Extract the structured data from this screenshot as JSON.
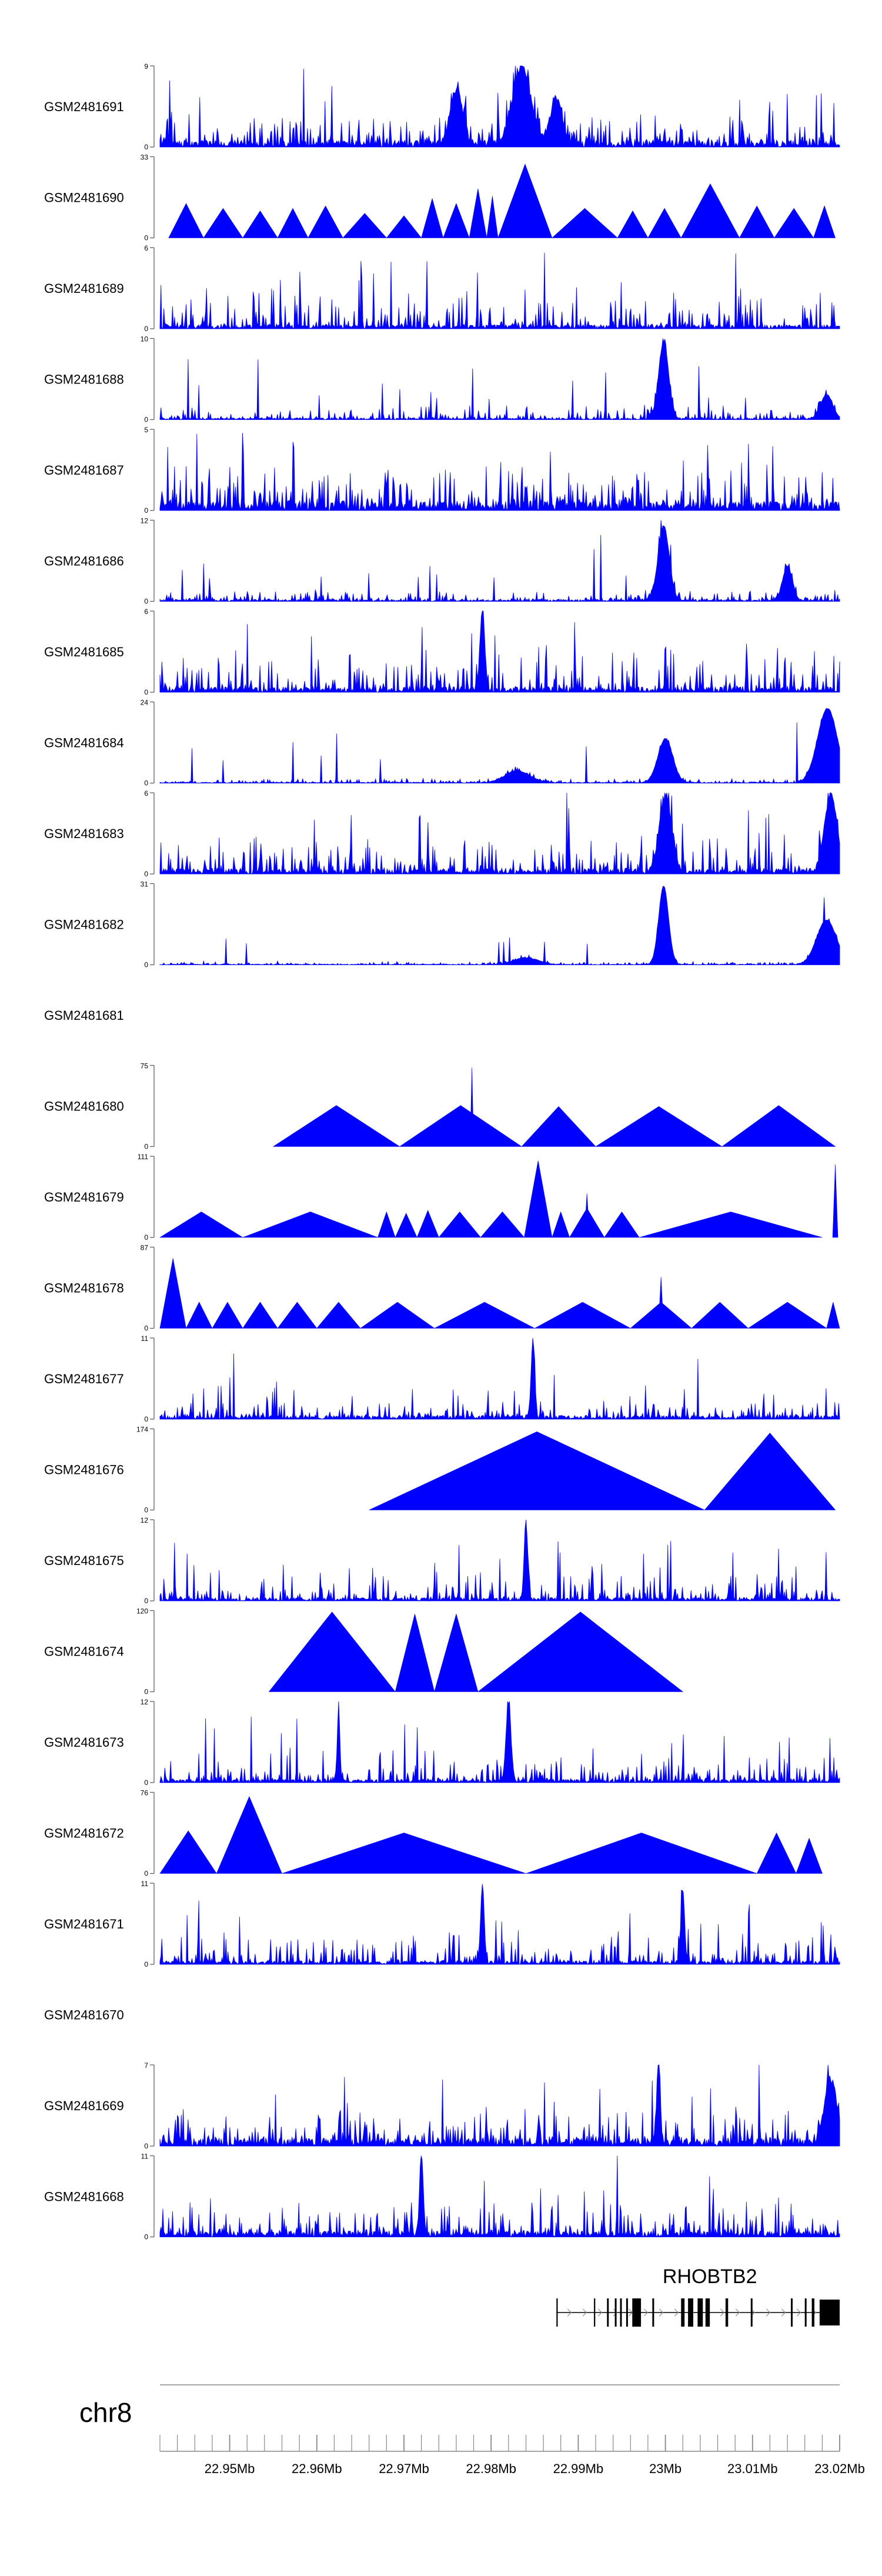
{
  "chart_data": {
    "type": "area",
    "title": "",
    "chromosome": "chr8",
    "x_axis": {
      "unit": "Mb",
      "xlim": [
        22.942,
        23.02
      ],
      "ticks": [
        22.95,
        22.96,
        22.97,
        22.98,
        22.99,
        23.0,
        23.01,
        23.02
      ],
      "tick_labels": [
        "22.95Mb",
        "22.96Mb",
        "22.97Mb",
        "22.98Mb",
        "22.99Mb",
        "23Mb",
        "23.01Mb",
        "23.02Mb"
      ]
    },
    "gene": {
      "name": "RHOBTB2",
      "start": 22.9875,
      "end": 23.02,
      "strand": "+",
      "exons": [
        [
          22.9875,
          22.98765
        ],
        [
          22.9918,
          22.99195
        ],
        [
          22.9933,
          22.9935
        ],
        [
          22.9942,
          22.9944
        ],
        [
          22.9948,
          22.995
        ],
        [
          22.9955,
          22.9957
        ],
        [
          22.9962,
          22.9972
        ],
        [
          22.9985,
          22.9987
        ],
        [
          23.0018,
          23.0022
        ],
        [
          23.0026,
          23.0032
        ],
        [
          23.0037,
          23.0043
        ],
        [
          23.0046,
          23.0051
        ],
        [
          23.0069,
          23.0072
        ],
        [
          23.0098,
          23.01
        ],
        [
          23.0144,
          23.0146
        ],
        [
          23.016,
          23.0162
        ],
        [
          23.0168,
          23.0171
        ],
        [
          23.0177,
          23.02
        ]
      ]
    },
    "series": [
      {
        "name": "GSM2481691",
        "ylim": [
          0,
          9
        ],
        "shape": "dense",
        "seed": 11,
        "base": 0.8,
        "noise": 1.6,
        "spikes": 30,
        "peaks": [
          [
            22.9835,
            8.5,
            0.0015
          ],
          [
            22.976,
            6.0,
            0.001
          ],
          [
            22.9875,
            5.0,
            0.001
          ]
        ]
      },
      {
        "name": "GSM2481690",
        "ylim": [
          0,
          33
        ],
        "shape": "triangles",
        "seed": 12,
        "tris": [
          [
            22.943,
            22.947,
            14
          ],
          [
            22.947,
            22.9515,
            12
          ],
          [
            22.9515,
            22.9555,
            11
          ],
          [
            22.9555,
            22.959,
            12
          ],
          [
            22.959,
            22.963,
            13
          ],
          [
            22.963,
            22.968,
            10
          ],
          [
            22.968,
            22.972,
            9
          ],
          [
            22.972,
            22.9745,
            16
          ],
          [
            22.9745,
            22.9775,
            14
          ],
          [
            22.9775,
            22.9795,
            20
          ],
          [
            22.9795,
            22.9808,
            17
          ],
          [
            22.9808,
            22.987,
            30
          ],
          [
            22.987,
            22.9945,
            12
          ],
          [
            22.9945,
            22.998,
            11
          ],
          [
            22.998,
            23.0018,
            12
          ],
          [
            23.0018,
            23.0085,
            22
          ],
          [
            23.0085,
            23.0125,
            13
          ],
          [
            23.0125,
            23.017,
            12
          ],
          [
            23.017,
            23.0195,
            13
          ]
        ]
      },
      {
        "name": "GSM2481689",
        "ylim": [
          0,
          6
        ],
        "shape": "dense",
        "seed": 13,
        "base": 0.3,
        "noise": 1.2,
        "spikes": 45,
        "peaks": []
      },
      {
        "name": "GSM2481688",
        "ylim": [
          0,
          10
        ],
        "shape": "dense",
        "seed": 14,
        "base": 0.2,
        "noise": 0.9,
        "spikes": 15,
        "peaks": [
          [
            22.9998,
            9.5,
            0.0008
          ],
          [
            23.0185,
            3.0,
            0.001
          ]
        ]
      },
      {
        "name": "GSM2481687",
        "ylim": [
          0,
          5
        ],
        "shape": "dense",
        "seed": 15,
        "base": 0.6,
        "noise": 1.4,
        "spikes": 40,
        "peaks": []
      },
      {
        "name": "GSM2481686",
        "ylim": [
          0,
          12
        ],
        "shape": "dense",
        "seed": 16,
        "base": 0.3,
        "noise": 0.9,
        "spikes": 14,
        "peaks": [
          [
            22.9998,
            11.0,
            0.0009
          ],
          [
            23.014,
            5.0,
            0.0008
          ]
        ]
      },
      {
        "name": "GSM2481685",
        "ylim": [
          0,
          6
        ],
        "shape": "dense",
        "seed": 17,
        "base": 0.4,
        "noise": 1.3,
        "spikes": 40,
        "peaks": [
          [
            22.979,
            5.8,
            0.0004
          ]
        ]
      },
      {
        "name": "GSM2481684",
        "ylim": [
          0,
          24
        ],
        "shape": "dense",
        "seed": 18,
        "base": 0.3,
        "noise": 0.7,
        "spikes": 8,
        "peaks": [
          [
            23.0,
            13.0,
            0.0012
          ],
          [
            23.0186,
            22.0,
            0.0016
          ],
          [
            22.983,
            3.5,
            0.002
          ]
        ]
      },
      {
        "name": "GSM2481683",
        "ylim": [
          0,
          6
        ],
        "shape": "dense",
        "seed": 19,
        "base": 0.4,
        "noise": 1.2,
        "spikes": 40,
        "peaks": [
          [
            23.0,
            5.5,
            0.001
          ],
          [
            23.019,
            5.8,
            0.001
          ]
        ]
      },
      {
        "name": "GSM2481682",
        "ylim": [
          0,
          31
        ],
        "shape": "dense",
        "seed": 20,
        "base": 0.3,
        "noise": 0.7,
        "spikes": 8,
        "peaks": [
          [
            22.9998,
            30.0,
            0.0008
          ],
          [
            23.0185,
            17.0,
            0.0016
          ],
          [
            22.984,
            2.5,
            0.002
          ]
        ]
      },
      {
        "name": "GSM2481681",
        "ylim": null,
        "shape": "empty"
      },
      {
        "name": "GSM2481680",
        "ylim": [
          0,
          75
        ],
        "shape": "triangles",
        "seed": 21,
        "tris": [
          [
            22.955,
            22.9695,
            38
          ],
          [
            22.9695,
            22.9835,
            38
          ],
          [
            22.9835,
            22.992,
            37
          ],
          [
            22.992,
            23.0065,
            37
          ],
          [
            23.0065,
            23.0195,
            38
          ]
        ],
        "peaks": [
          [
            22.9778,
            73,
            0.0002
          ]
        ]
      },
      {
        "name": "GSM2481679",
        "ylim": [
          0,
          111
        ],
        "shape": "triangles",
        "seed": 22,
        "tris": [
          [
            22.942,
            22.9515,
            35
          ],
          [
            22.9515,
            22.967,
            35
          ],
          [
            22.967,
            22.969,
            35
          ],
          [
            22.969,
            22.9715,
            33
          ],
          [
            22.9715,
            22.974,
            37
          ],
          [
            22.974,
            22.9788,
            35
          ],
          [
            22.9788,
            22.9838,
            35
          ],
          [
            22.9838,
            22.987,
            105
          ],
          [
            22.987,
            22.989,
            35
          ],
          [
            22.989,
            22.993,
            40
          ],
          [
            22.993,
            22.997,
            35
          ],
          [
            22.997,
            23.018,
            35
          ]
        ],
        "peaks": [
          [
            22.991,
            60,
            0.0003
          ],
          [
            23.0195,
            100,
            0.0003
          ]
        ]
      },
      {
        "name": "GSM2481678",
        "ylim": [
          0,
          87
        ],
        "shape": "triangles",
        "seed": 23,
        "tris": [
          [
            22.942,
            22.945,
            75
          ],
          [
            22.945,
            22.948,
            28
          ],
          [
            22.948,
            22.9515,
            28
          ],
          [
            22.9515,
            22.9555,
            28
          ],
          [
            22.9555,
            22.96,
            28
          ],
          [
            22.96,
            22.965,
            28
          ],
          [
            22.965,
            22.9735,
            28
          ],
          [
            22.9735,
            22.985,
            28
          ],
          [
            22.985,
            22.996,
            28
          ],
          [
            22.996,
            23.003,
            28
          ],
          [
            23.003,
            23.0095,
            28
          ],
          [
            23.0095,
            23.0185,
            28
          ],
          [
            23.0185,
            23.02,
            28
          ]
        ],
        "peaks": [
          [
            22.9995,
            55,
            0.0003
          ]
        ]
      },
      {
        "name": "GSM2481677",
        "ylim": [
          0,
          11
        ],
        "shape": "dense",
        "seed": 24,
        "base": 0.5,
        "noise": 1.3,
        "spikes": 25,
        "peaks": [
          [
            22.9848,
            10.5,
            0.0003
          ]
        ]
      },
      {
        "name": "GSM2481676",
        "ylim": [
          0,
          174
        ],
        "shape": "triangles",
        "seed": 25,
        "tris": [
          [
            22.966,
            23.0045,
            168
          ],
          [
            23.0045,
            23.0195,
            165
          ]
        ]
      },
      {
        "name": "GSM2481675",
        "ylim": [
          0,
          12
        ],
        "shape": "dense",
        "seed": 26,
        "base": 0.5,
        "noise": 1.8,
        "spikes": 40,
        "peaks": [
          [
            22.984,
            11.5,
            0.0003
          ]
        ]
      },
      {
        "name": "GSM2481674",
        "ylim": [
          0,
          120
        ],
        "shape": "triangles",
        "seed": 27,
        "tris": [
          [
            22.9545,
            22.969,
            118
          ],
          [
            22.969,
            22.9735,
            115
          ],
          [
            22.9735,
            22.9785,
            115
          ],
          [
            22.9785,
            23.002,
            118
          ]
        ]
      },
      {
        "name": "GSM2481673",
        "ylim": [
          0,
          12
        ],
        "shape": "dense",
        "seed": 28,
        "base": 0.5,
        "noise": 1.6,
        "spikes": 35,
        "peaks": [
          [
            22.982,
            11.5,
            0.0004
          ],
          [
            22.9625,
            11.0,
            0.0002
          ]
        ]
      },
      {
        "name": "GSM2481672",
        "ylim": [
          0,
          76
        ],
        "shape": "triangles",
        "seed": 29,
        "tris": [
          [
            22.942,
            22.9485,
            40
          ],
          [
            22.9485,
            22.956,
            72
          ],
          [
            22.956,
            22.984,
            38
          ],
          [
            22.984,
            23.0105,
            38
          ],
          [
            23.0105,
            23.015,
            38
          ],
          [
            23.015,
            23.018,
            33
          ]
        ]
      },
      {
        "name": "GSM2481671",
        "ylim": [
          0,
          11
        ],
        "shape": "dense",
        "seed": 30,
        "base": 0.5,
        "noise": 2.2,
        "spikes": 25,
        "peaks": [
          [
            22.979,
            10.5,
            0.0003
          ],
          [
            23.002,
            10.0,
            0.0003
          ]
        ]
      },
      {
        "name": "GSM2481670",
        "ylim": null,
        "shape": "empty"
      },
      {
        "name": "GSM2481669",
        "ylim": [
          0,
          7
        ],
        "shape": "dense",
        "seed": 31,
        "base": 0.7,
        "noise": 1.4,
        "spikes": 35,
        "peaks": [
          [
            22.9992,
            6.8,
            0.0003
          ],
          [
            23.019,
            5.5,
            0.001
          ]
        ]
      },
      {
        "name": "GSM2481668",
        "ylim": [
          0,
          11
        ],
        "shape": "dense",
        "seed": 32,
        "base": 0.8,
        "noise": 2.2,
        "spikes": 35,
        "peaks": [
          [
            22.972,
            10.8,
            0.0003
          ]
        ]
      }
    ]
  }
}
